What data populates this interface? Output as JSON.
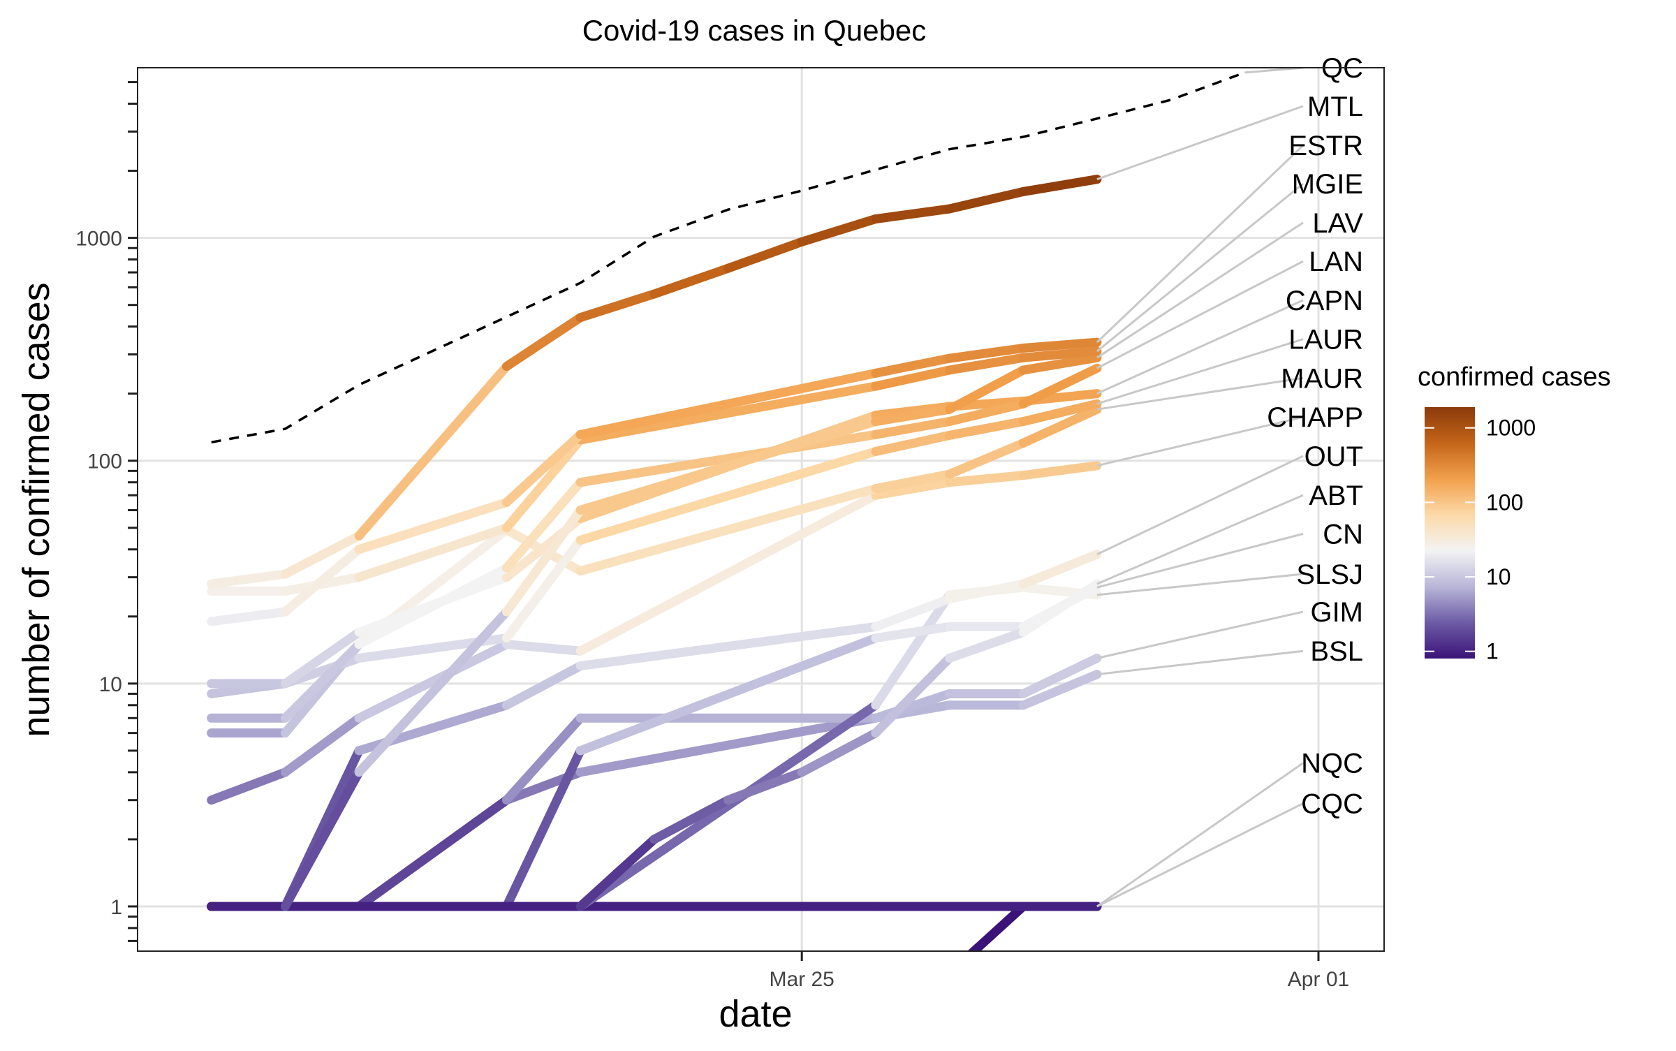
{
  "chart_data": {
    "type": "line",
    "title": "Covid-19 cases in Quebec",
    "xlabel": "date",
    "ylabel": "number of confirmed cases",
    "y_scale": "log10",
    "ylim": [
      0.63,
      5800
    ],
    "xlim": [
      "2020-03-16",
      "2020-04-01"
    ],
    "x_ticks": [
      {
        "date": "2020-03-25",
        "label": "Mar 25"
      },
      {
        "date": "2020-04-01",
        "label": "Apr 01"
      }
    ],
    "y_ticks": [
      {
        "value": 1,
        "label": "1"
      },
      {
        "value": 10,
        "label": "10"
      },
      {
        "value": 100,
        "label": "100"
      },
      {
        "value": 1000,
        "label": "1000"
      }
    ],
    "grid": true,
    "dates": [
      "2020-03-16",
      "2020-03-17",
      "2020-03-18",
      "2020-03-19",
      "2020-03-20",
      "2020-03-21",
      "2020-03-22",
      "2020-03-23",
      "2020-03-24",
      "2020-03-25",
      "2020-03-26",
      "2020-03-27",
      "2020-03-28",
      "2020-03-29",
      "2020-03-30",
      "2020-03-31",
      "2020-04-01"
    ],
    "series": [
      {
        "name": "QC",
        "dashed": true,
        "color": "#000000",
        "x": [
          "2020-03-17",
          "2020-03-18",
          "2020-03-19",
          "2020-03-22",
          "2020-03-23",
          "2020-03-24",
          "2020-03-25",
          "2020-03-26",
          "2020-03-27",
          "2020-03-28",
          "2020-03-29",
          "2020-03-30",
          "2020-03-31"
        ],
        "values": [
          121,
          139,
          219,
          628,
          1013,
          1339,
          1629,
          2021,
          2498,
          2840,
          3430,
          4162,
          5518
        ]
      },
      {
        "name": "MTL",
        "x": [
          "2020-03-17",
          "2020-03-18",
          "2020-03-19",
          "2020-03-21",
          "2020-03-22",
          "2020-03-23",
          "2020-03-24",
          "2020-03-25",
          "2020-03-26",
          "2020-03-27",
          "2020-03-28",
          "2020-03-29"
        ],
        "values": [
          28,
          31,
          46,
          265,
          439,
          560,
          730,
          960,
          1216,
          1350,
          1612,
          1832
        ]
      },
      {
        "name": "ESTR",
        "x": [
          "2020-03-17",
          "2020-03-18",
          "2020-03-19",
          "2020-03-21",
          "2020-03-22",
          "2020-03-26",
          "2020-03-27",
          "2020-03-28",
          "2020-03-29"
        ],
        "values": [
          19,
          21,
          40,
          65,
          131,
          247,
          288,
          320,
          340
        ]
      },
      {
        "name": "MGIE",
        "x": [
          "2020-03-17",
          "2020-03-18",
          "2020-03-19",
          "2020-03-21",
          "2020-03-22",
          "2020-03-26",
          "2020-03-27",
          "2020-03-28",
          "2020-03-29"
        ],
        "values": [
          26,
          26,
          30,
          50,
          124,
          216,
          255,
          290,
          310
        ]
      },
      {
        "name": "LAV",
        "x": [
          "2020-03-17",
          "2020-03-18",
          "2020-03-19",
          "2020-03-21",
          "2020-03-22",
          "2020-03-26",
          "2020-03-27",
          "2020-03-28",
          "2020-03-29"
        ],
        "values": [
          1,
          1,
          4,
          21,
          60,
          150,
          170,
          255,
          290
        ]
      },
      {
        "name": "LAN",
        "x": [
          "2020-03-17",
          "2020-03-18",
          "2020-03-19",
          "2020-03-21",
          "2020-03-22",
          "2020-03-26",
          "2020-03-27",
          "2020-03-28",
          "2020-03-29"
        ],
        "values": [
          7,
          7,
          15,
          33,
          80,
          131,
          150,
          180,
          260
        ]
      },
      {
        "name": "CAPN",
        "x": [
          "2020-03-17",
          "2020-03-18",
          "2020-03-19",
          "2020-03-21",
          "2020-03-22",
          "2020-03-26",
          "2020-03-27",
          "2020-03-28",
          "2020-03-29"
        ],
        "values": [
          10,
          10,
          17,
          30,
          55,
          160,
          175,
          185,
          200
        ]
      },
      {
        "name": "LAUR",
        "x": [
          "2020-03-17",
          "2020-03-18",
          "2020-03-19",
          "2020-03-21",
          "2020-03-22",
          "2020-03-26",
          "2020-03-27",
          "2020-03-28",
          "2020-03-29"
        ],
        "values": [
          9,
          10,
          13,
          16,
          44,
          110,
          130,
          150,
          180
        ]
      },
      {
        "name": "MAUR",
        "x": [
          "2020-03-17",
          "2020-03-18",
          "2020-03-19",
          "2020-03-21",
          "2020-03-22",
          "2020-03-26",
          "2020-03-27",
          "2020-03-28",
          "2020-03-29"
        ],
        "values": [
          6,
          6,
          15,
          49,
          32,
          75,
          87,
          120,
          170
        ]
      },
      {
        "name": "CHAPP",
        "x": [
          "2020-03-17",
          "2020-03-18",
          "2020-03-19",
          "2020-03-21",
          "2020-03-22",
          "2020-03-26",
          "2020-03-27",
          "2020-03-28",
          "2020-03-29"
        ],
        "values": [
          3,
          4,
          7,
          15,
          14,
          70,
          80,
          86,
          95
        ]
      },
      {
        "name": "OUT",
        "x": [
          "2020-03-17",
          "2020-03-18",
          "2020-03-19",
          "2020-03-21",
          "2020-03-22",
          "2020-03-26",
          "2020-03-27",
          "2020-03-28",
          "2020-03-29"
        ],
        "values": [
          1,
          1,
          5,
          8,
          12,
          18,
          24,
          28,
          38
        ]
      },
      {
        "name": "ABT",
        "x": [
          "2020-03-17",
          "2020-03-18",
          "2020-03-19",
          "2020-03-21",
          "2020-03-22",
          "2020-03-23",
          "2020-03-24",
          "2020-03-25",
          "2020-03-26",
          "2020-03-27",
          "2020-03-28",
          "2020-03-29"
        ],
        "values": [
          1,
          1,
          1,
          1,
          1,
          2,
          3,
          4,
          6,
          13,
          17,
          28
        ]
      },
      {
        "name": "CN",
        "x": [
          "2020-03-17",
          "2020-03-18",
          "2020-03-19",
          "2020-03-21",
          "2020-03-22",
          "2020-03-26",
          "2020-03-27",
          "2020-03-28",
          "2020-03-29"
        ],
        "values": [
          1,
          1,
          1,
          1,
          5,
          16,
          18,
          18,
          27
        ]
      },
      {
        "name": "SLSJ",
        "x": [
          "2020-03-17",
          "2020-03-18",
          "2020-03-19",
          "2020-03-21",
          "2020-03-22",
          "2020-03-26",
          "2020-03-27",
          "2020-03-28",
          "2020-03-29"
        ],
        "values": [
          1,
          1,
          1,
          1,
          1,
          8,
          25,
          27,
          25
        ]
      },
      {
        "name": "GIM",
        "x": [
          "2020-03-17",
          "2020-03-18",
          "2020-03-19",
          "2020-03-21",
          "2020-03-22",
          "2020-03-26",
          "2020-03-27",
          "2020-03-28",
          "2020-03-29"
        ],
        "values": [
          1,
          1,
          1,
          3,
          7,
          7,
          9,
          9,
          13
        ]
      },
      {
        "name": "BSL",
        "x": [
          "2020-03-17",
          "2020-03-18",
          "2020-03-19",
          "2020-03-21",
          "2020-03-22",
          "2020-03-26",
          "2020-03-27",
          "2020-03-28",
          "2020-03-29"
        ],
        "values": [
          1,
          1,
          1,
          3,
          4,
          7,
          8,
          8,
          11
        ]
      },
      {
        "name": "NQC",
        "x": [
          "2020-03-17",
          "2020-03-18",
          "2020-03-19",
          "2020-03-21",
          "2020-03-22",
          "2020-03-26",
          "2020-03-27",
          "2020-03-28",
          "2020-03-29"
        ],
        "values": [
          1,
          1,
          1,
          1,
          1,
          1,
          1,
          1,
          1
        ]
      },
      {
        "name": "CQC",
        "x": [
          "2020-03-26",
          "2020-03-27",
          "2020-03-28",
          "2020-03-29"
        ],
        "values": [
          0.5,
          0.5,
          1,
          1
        ]
      }
    ],
    "label_order": [
      "QC",
      "MTL",
      "ESTR",
      "MGIE",
      "LAV",
      "LAN",
      "CAPN",
      "LAUR",
      "MAUR",
      "CHAPP",
      "OUT",
      "ABT",
      "CN",
      "SLSJ",
      "GIM",
      "BSL",
      "NQC",
      "CQC"
    ],
    "label_values": [
      5800,
      3900,
      2600,
      1750,
      1170,
      785,
      525,
      351,
      235,
      157,
      105,
      70,
      47,
      31,
      21,
      14,
      4.4,
      2.9
    ],
    "legend": {
      "title": "confirmed cases",
      "placement": "right",
      "scale": "log10",
      "range": [
        0.8,
        1900
      ],
      "ticks": [
        {
          "value": 1,
          "label": "1"
        },
        {
          "value": 10,
          "label": "10"
        },
        {
          "value": 100,
          "label": "100"
        },
        {
          "value": 1000,
          "label": "1000"
        }
      ],
      "colormap": [
        "#3b1378",
        "#6d5ba5",
        "#b8b6d8",
        "#f3f3f4",
        "#fcd9a8",
        "#f2a04c",
        "#c36519",
        "#8b3a0b"
      ]
    }
  }
}
